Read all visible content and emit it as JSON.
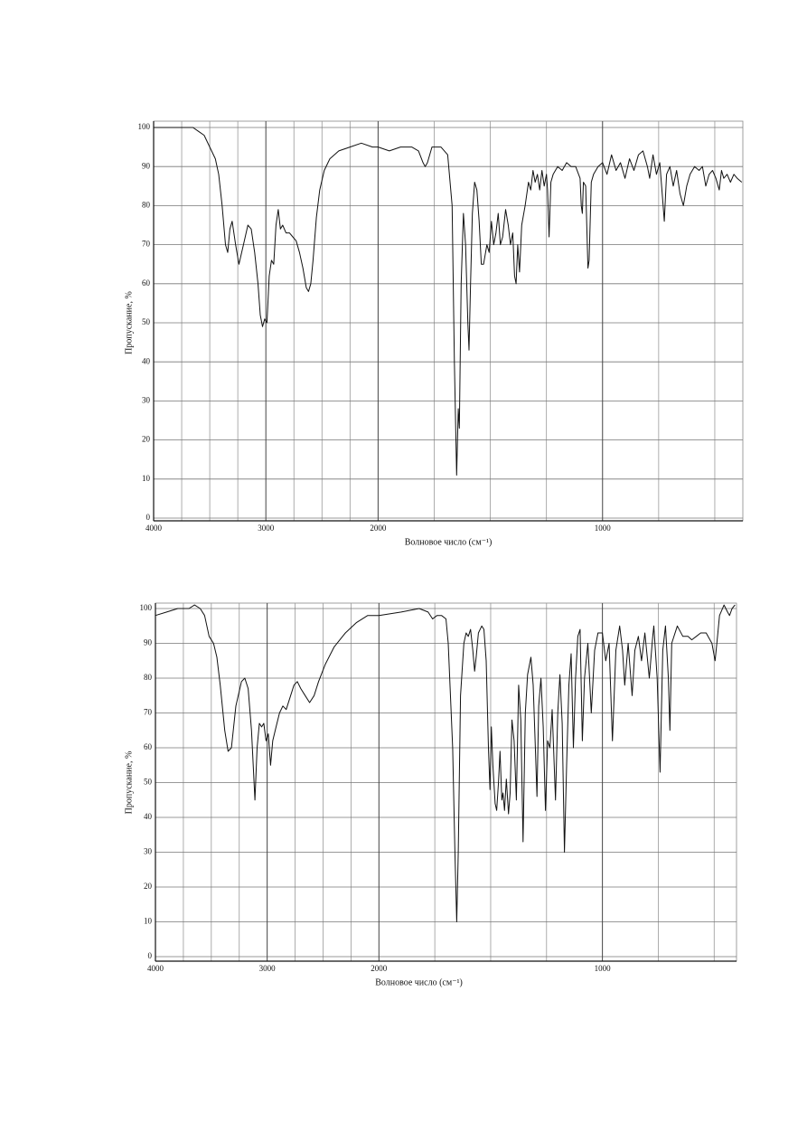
{
  "chart_data": [
    {
      "type": "line",
      "y_label": "Пропускание, %",
      "x_label": "Волновое число (см⁻¹)",
      "color": "#111111",
      "grid": true,
      "xlim": [
        4000,
        375
      ],
      "x_scale_break": 2000,
      "x_scale_ratio": 2,
      "xticks": [
        4000,
        3000,
        2000,
        1000
      ],
      "x_grid": [
        3750,
        3500,
        3250,
        2750,
        2500,
        2250,
        1750,
        1500,
        1250,
        750,
        500
      ],
      "ylim": [
        0,
        100
      ],
      "yticks": [
        0,
        10,
        20,
        30,
        40,
        50,
        60,
        70,
        80,
        90,
        100
      ],
      "x": [
        4000,
        3900,
        3800,
        3700,
        3650,
        3600,
        3550,
        3500,
        3450,
        3420,
        3390,
        3360,
        3340,
        3320,
        3300,
        3270,
        3240,
        3200,
        3160,
        3130,
        3100,
        3070,
        3050,
        3030,
        3010,
        2990,
        2970,
        2950,
        2930,
        2910,
        2890,
        2870,
        2850,
        2820,
        2790,
        2760,
        2730,
        2700,
        2670,
        2640,
        2620,
        2600,
        2580,
        2550,
        2520,
        2480,
        2430,
        2350,
        2250,
        2150,
        2050,
        2000,
        1950,
        1900,
        1850,
        1820,
        1800,
        1790,
        1780,
        1760,
        1720,
        1690,
        1670,
        1660,
        1650,
        1643,
        1638,
        1630,
        1620,
        1610,
        1600,
        1595,
        1588,
        1580,
        1570,
        1560,
        1550,
        1540,
        1530,
        1515,
        1505,
        1495,
        1485,
        1475,
        1465,
        1455,
        1445,
        1432,
        1420,
        1410,
        1400,
        1392,
        1385,
        1378,
        1370,
        1360,
        1345,
        1330,
        1320,
        1310,
        1300,
        1290,
        1280,
        1270,
        1260,
        1250,
        1245,
        1238,
        1230,
        1220,
        1200,
        1180,
        1160,
        1140,
        1120,
        1100,
        1095,
        1090,
        1085,
        1075,
        1065,
        1060,
        1050,
        1040,
        1020,
        1000,
        980,
        960,
        940,
        920,
        900,
        880,
        860,
        840,
        820,
        800,
        790,
        775,
        760,
        745,
        730,
        725,
        715,
        700,
        685,
        670,
        655,
        640,
        625,
        610,
        590,
        570,
        555,
        540,
        525,
        510,
        495,
        480,
        470,
        460,
        445,
        430,
        415,
        400,
        380
      ],
      "values": [
        100,
        100,
        100,
        100,
        100,
        99,
        98,
        95,
        92,
        88,
        80,
        70,
        68,
        74,
        76,
        70,
        65,
        70,
        75,
        74,
        68,
        60,
        52,
        49,
        51,
        50,
        62,
        66,
        65,
        75,
        79,
        74,
        75,
        73,
        73,
        72,
        71,
        68,
        64,
        59,
        58,
        60,
        66,
        77,
        84,
        89,
        92,
        94,
        95,
        96,
        95,
        95,
        94,
        95,
        95,
        94,
        91,
        90,
        91,
        95,
        95,
        93,
        80,
        40,
        11,
        28,
        23,
        60,
        78,
        70,
        50,
        43,
        60,
        78,
        86,
        84,
        76,
        65,
        65,
        70,
        68,
        76,
        70,
        73,
        78,
        70,
        72,
        79,
        75,
        70,
        73,
        62,
        60,
        70,
        63,
        75,
        80,
        86,
        84,
        89,
        86,
        88,
        84,
        89,
        85,
        88,
        84,
        72,
        86,
        88,
        90,
        89,
        91,
        90,
        90,
        87,
        80,
        78,
        86,
        85,
        64,
        66,
        86,
        88,
        90,
        91,
        88,
        93,
        89,
        91,
        87,
        92,
        89,
        93,
        94,
        90,
        87,
        93,
        88,
        91,
        80,
        76,
        88,
        90,
        85,
        89,
        83,
        80,
        85,
        88,
        90,
        89,
        90,
        85,
        88,
        89,
        87,
        84,
        89,
        87,
        88,
        86,
        88,
        87,
        86
      ]
    },
    {
      "type": "line",
      "y_label": "Пропускание, %",
      "x_label": "Волновое число (см⁻¹)",
      "color": "#111111",
      "grid": true,
      "xlim": [
        4000,
        400
      ],
      "x_scale_break": 2000,
      "x_scale_ratio": 2,
      "xticks": [
        4000,
        3000,
        2000,
        1000
      ],
      "x_grid": [
        3750,
        3500,
        3250,
        2750,
        2500,
        2250,
        1750,
        1500,
        1250,
        750,
        500
      ],
      "ylim": [
        0,
        100
      ],
      "yticks": [
        0,
        10,
        20,
        30,
        40,
        50,
        60,
        70,
        80,
        90,
        100
      ],
      "x": [
        4000,
        3900,
        3800,
        3700,
        3650,
        3600,
        3560,
        3520,
        3480,
        3450,
        3420,
        3380,
        3350,
        3320,
        3280,
        3230,
        3200,
        3170,
        3140,
        3110,
        3090,
        3070,
        3050,
        3030,
        3010,
        2990,
        2970,
        2950,
        2920,
        2890,
        2860,
        2830,
        2790,
        2760,
        2730,
        2700,
        2660,
        2620,
        2580,
        2540,
        2480,
        2400,
        2300,
        2200,
        2100,
        2000,
        1900,
        1820,
        1780,
        1760,
        1740,
        1720,
        1700,
        1690,
        1670,
        1660,
        1652,
        1645,
        1635,
        1620,
        1610,
        1600,
        1590,
        1580,
        1572,
        1565,
        1555,
        1540,
        1530,
        1520,
        1510,
        1503,
        1497,
        1490,
        1480,
        1473,
        1465,
        1458,
        1450,
        1445,
        1438,
        1430,
        1420,
        1413,
        1405,
        1395,
        1385,
        1375,
        1365,
        1355,
        1345,
        1335,
        1320,
        1310,
        1300,
        1293,
        1285,
        1275,
        1265,
        1255,
        1245,
        1235,
        1225,
        1210,
        1200,
        1190,
        1180,
        1170,
        1160,
        1150,
        1140,
        1130,
        1120,
        1110,
        1100,
        1090,
        1080,
        1065,
        1050,
        1035,
        1020,
        1000,
        985,
        970,
        955,
        940,
        923,
        910,
        900,
        885,
        867,
        855,
        839,
        825,
        810,
        790,
        775,
        770,
        755,
        742,
        730,
        718,
        705,
        698,
        690,
        665,
        640,
        617,
        600,
        580,
        560,
        536,
        510,
        496,
        485,
        476,
        456,
        440,
        431,
        420,
        407
      ],
      "values": [
        98,
        99,
        100,
        100,
        101,
        100,
        98,
        92,
        90,
        86,
        78,
        65,
        59,
        60,
        72,
        79,
        80,
        77,
        65,
        45,
        60,
        67,
        66,
        67,
        62,
        64,
        55,
        62,
        66,
        70,
        72,
        71,
        75,
        78,
        79,
        77,
        75,
        73,
        75,
        79,
        84,
        89,
        93,
        96,
        98,
        98,
        99,
        100,
        99,
        97,
        98,
        98,
        97,
        90,
        60,
        30,
        10,
        30,
        75,
        90,
        93,
        92,
        94,
        88,
        82,
        86,
        93,
        95,
        94,
        85,
        60,
        48,
        66,
        55,
        44,
        42,
        50,
        59,
        45,
        47,
        42,
        51,
        41,
        47,
        68,
        62,
        45,
        78,
        68,
        33,
        70,
        81,
        86,
        78,
        60,
        46,
        72,
        80,
        66,
        42,
        62,
        60,
        71,
        45,
        70,
        81,
        67,
        30,
        55,
        78,
        87,
        60,
        80,
        92,
        94,
        62,
        80,
        90,
        70,
        88,
        93,
        93,
        85,
        90,
        62,
        88,
        95,
        88,
        78,
        90,
        75,
        88,
        92,
        85,
        93,
        80,
        92,
        95,
        80,
        53,
        88,
        95,
        80,
        65,
        90,
        95,
        92,
        92,
        91,
        92,
        93,
        93,
        90,
        85,
        92,
        98,
        101,
        99,
        98,
        100,
        101
      ]
    }
  ]
}
